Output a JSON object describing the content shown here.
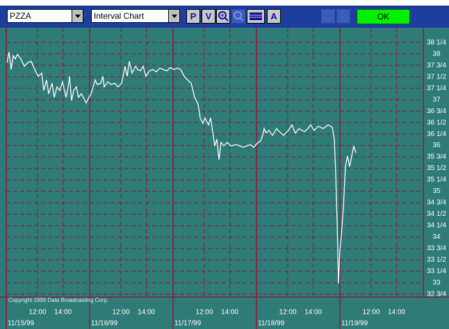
{
  "toolbar": {
    "symbol": "PZZA",
    "chart_type": "Interval Chart",
    "buttons": [
      "P",
      "V",
      "A"
    ],
    "ok": "OK"
  },
  "copyright": "Copyright 1999 Data Broadcasting Corp.",
  "chart_data": {
    "type": "line",
    "series": [
      {
        "color": "#ffffff",
        "x": [
          0.008,
          0.033,
          0.058,
          0.083,
          0.108,
          0.133,
          0.175,
          0.217,
          0.258,
          0.3,
          0.342,
          0.383,
          0.425,
          0.45,
          0.483,
          0.508,
          0.55,
          0.575,
          0.608,
          0.642,
          0.675,
          0.717,
          0.742,
          0.758,
          0.783,
          0.808,
          0.842,
          0.867,
          0.9,
          0.925,
          0.958,
          0.992,
          1.017,
          1.042,
          1.067,
          1.092,
          1.133,
          1.158,
          1.175,
          1.217,
          1.258,
          1.3,
          1.342,
          1.383,
          1.425,
          1.45,
          1.475,
          1.508,
          1.55,
          1.575,
          1.608,
          1.642,
          1.675,
          1.717,
          1.758,
          1.8,
          1.842,
          1.883,
          1.925,
          1.967,
          2.008,
          2.05,
          2.092,
          2.133,
          2.175,
          2.217,
          2.258,
          2.3,
          2.325,
          2.358,
          2.383,
          2.425,
          2.45,
          2.475,
          2.5,
          2.525,
          2.55,
          2.575,
          2.608,
          2.65,
          2.692,
          2.758,
          2.842,
          2.925,
          2.967,
          3.008,
          3.05,
          3.075,
          3.092,
          3.117,
          3.15,
          3.192,
          3.242,
          3.275,
          3.325,
          3.383,
          3.425,
          3.467,
          3.508,
          3.575,
          3.617,
          3.65,
          3.692,
          3.742,
          3.8,
          3.858,
          3.908,
          3.933,
          3.95,
          3.967,
          3.983,
          4.0,
          4.017,
          4.042,
          4.067,
          4.092,
          4.117,
          4.142,
          4.167,
          4.192
        ],
        "values": [
          37.81,
          38.04,
          37.66,
          37.96,
          37.89,
          37.99,
          37.89,
          37.73,
          37.81,
          37.84,
          37.66,
          37.51,
          37.58,
          37.2,
          37.43,
          37.13,
          37.36,
          37.05,
          37.28,
          37.2,
          37.39,
          37.05,
          37.28,
          37.51,
          36.98,
          37.2,
          37.28,
          37.05,
          37.13,
          37.05,
          36.93,
          37.05,
          37.13,
          37.28,
          37.43,
          37.33,
          37.36,
          37.51,
          37.28,
          37.39,
          37.33,
          37.36,
          37.28,
          37.36,
          37.73,
          37.51,
          37.84,
          37.58,
          37.73,
          37.66,
          37.63,
          37.73,
          37.51,
          37.63,
          37.66,
          37.61,
          37.69,
          37.66,
          37.63,
          37.7,
          37.66,
          37.69,
          37.66,
          37.51,
          37.43,
          37.36,
          37.05,
          36.9,
          36.6,
          36.48,
          36.6,
          36.45,
          36.6,
          36.3,
          35.99,
          36.14,
          35.69,
          36.07,
          35.99,
          36.07,
          35.99,
          36.02,
          35.96,
          36.02,
          35.96,
          36.05,
          36.1,
          36.22,
          36.37,
          36.27,
          36.33,
          36.22,
          36.37,
          36.3,
          36.22,
          36.33,
          36.45,
          36.27,
          36.37,
          36.3,
          36.37,
          36.45,
          36.33,
          36.42,
          36.37,
          36.45,
          36.4,
          36.14,
          35.39,
          34.33,
          32.99,
          33.72,
          34.02,
          34.63,
          35.54,
          35.77,
          35.54,
          35.77,
          35.99,
          35.84
        ]
      }
    ],
    "ylim": [
      32.69,
      38.51
    ],
    "xlim": [
      0,
      5
    ],
    "yticks": [
      {
        "value": 38.25,
        "label": "38 1/4"
      },
      38,
      {
        "value": 37.75,
        "label": "37 3/4"
      },
      {
        "value": 37.5,
        "label": "37 1/2"
      },
      {
        "value": 37.25,
        "label": "37 1/4"
      },
      37,
      {
        "value": 36.75,
        "label": "36 3/4"
      },
      {
        "value": 36.5,
        "label": "36 1/2"
      },
      {
        "value": 36.25,
        "label": "36 1/4"
      },
      36,
      {
        "value": 35.75,
        "label": "35 3/4"
      },
      {
        "value": 35.5,
        "label": "35 1/2"
      },
      {
        "value": 35.25,
        "label": "35 1/4"
      },
      35,
      {
        "value": 34.75,
        "label": "34 3/4"
      },
      {
        "value": 34.5,
        "label": "34 1/2"
      },
      {
        "value": 34.25,
        "label": "34 1/4"
      },
      34,
      {
        "value": 33.75,
        "label": "33 3/4"
      },
      {
        "value": 33.5,
        "label": "33 1/2"
      },
      {
        "value": 33.25,
        "label": "33 1/4"
      },
      33,
      {
        "value": 32.75,
        "label": "32 3/4"
      }
    ],
    "xticks": [
      {
        "value": 0.375,
        "label": "12:00"
      },
      {
        "value": 0.68,
        "label": "14:00"
      },
      {
        "value": 1.375,
        "label": "12:00"
      },
      {
        "value": 1.68,
        "label": "14:00"
      },
      {
        "value": 2.375,
        "label": "12:00"
      },
      {
        "value": 2.68,
        "label": "14:00"
      },
      {
        "value": 3.375,
        "label": "12:00"
      },
      {
        "value": 3.68,
        "label": "14:00"
      },
      {
        "value": 4.375,
        "label": "12:00"
      },
      {
        "value": 4.68,
        "label": "14:00"
      }
    ],
    "date_ticks": [
      {
        "value": 0,
        "label": "11/15/99"
      },
      {
        "value": 1,
        "label": "11/16/99"
      },
      {
        "value": 2,
        "label": "11/17/99"
      },
      {
        "value": 3,
        "label": "11/18/99"
      },
      {
        "value": 4,
        "label": "11/19/99"
      }
    ],
    "grid": true
  }
}
